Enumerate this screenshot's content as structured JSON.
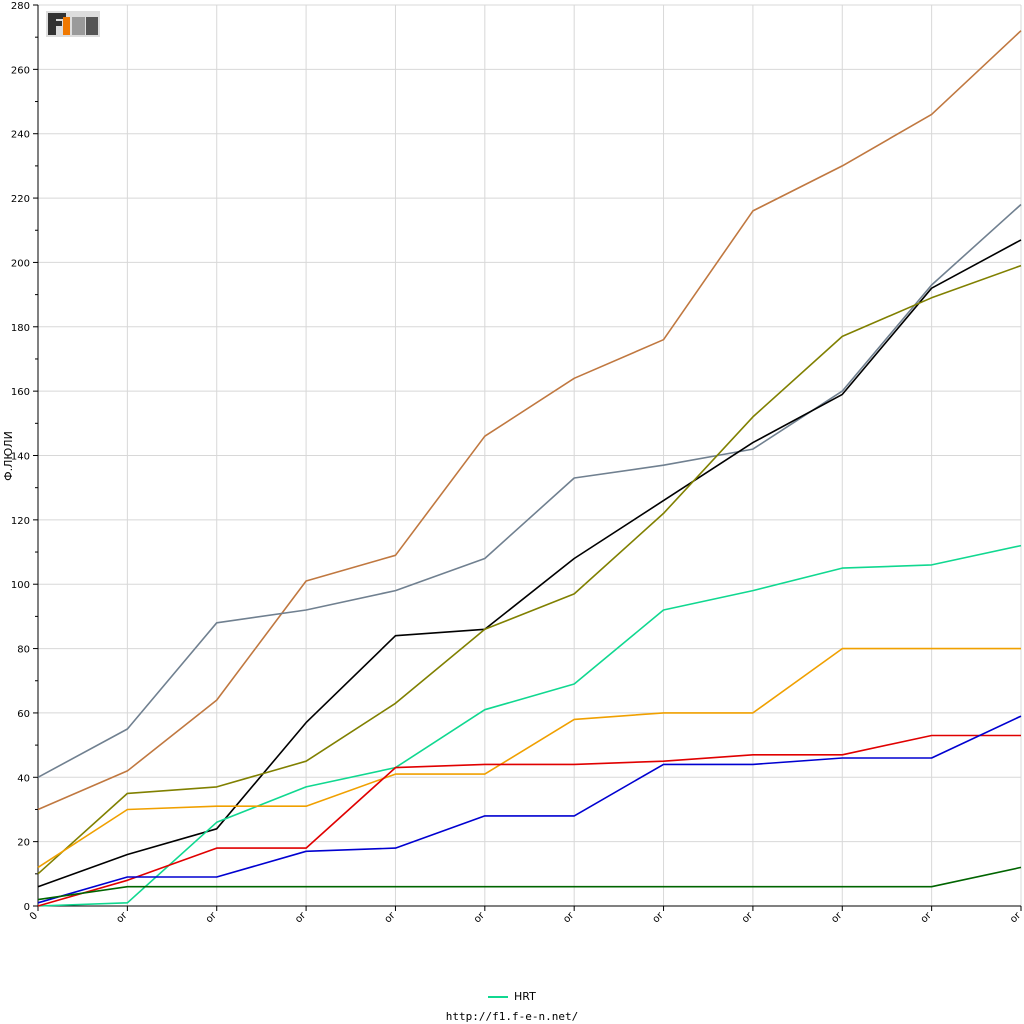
{
  "logo": {
    "text": "F1EN",
    "colors": {
      "dark": "#333333",
      "accent": "#f07800",
      "light": "#9a9a9a"
    }
  },
  "footer": {
    "url": "http://f1.f-e-n.net/"
  },
  "legend": {
    "label": "HRT",
    "color": "#10d890"
  },
  "chart_data": {
    "type": "line",
    "ylabel": "Ф.ЛЮЛИ",
    "ylim": [
      0,
      280
    ],
    "yticks": [
      0,
      20,
      40,
      60,
      80,
      100,
      120,
      140,
      160,
      180,
      200,
      220,
      240,
      260,
      280
    ],
    "x": [
      "0",
      "or",
      "or",
      "or",
      "or",
      "or",
      "or",
      "or",
      "or",
      "or",
      "or",
      "or"
    ],
    "grid": true,
    "legend_position": "bottom-center",
    "series": [
      {
        "color": "#c07840",
        "values": [
          30,
          42,
          64,
          101,
          109,
          146,
          164,
          176,
          216,
          230,
          246,
          272
        ]
      },
      {
        "color": "#708090",
        "values": [
          40,
          55,
          88,
          92,
          98,
          108,
          133,
          137,
          142,
          160,
          193,
          218
        ]
      },
      {
        "color": "#000000",
        "values": [
          6,
          16,
          24,
          57,
          84,
          86,
          108,
          126,
          144,
          159,
          192,
          207
        ]
      },
      {
        "color": "#808000",
        "values": [
          10,
          35,
          37,
          45,
          63,
          86,
          97,
          122,
          152,
          177,
          189,
          199
        ]
      },
      {
        "name": "HRT",
        "color": "#10d890",
        "values": [
          0,
          1,
          26,
          37,
          43,
          61,
          69,
          92,
          98,
          105,
          106,
          112
        ]
      },
      {
        "color": "#f0a000",
        "values": [
          12,
          30,
          31,
          31,
          41,
          41,
          58,
          60,
          60,
          80,
          80,
          80
        ]
      },
      {
        "color": "#e00000",
        "values": [
          0,
          8,
          18,
          18,
          43,
          44,
          44,
          45,
          47,
          47,
          53,
          53
        ]
      },
      {
        "color": "#0000d0",
        "values": [
          1,
          9,
          9,
          17,
          18,
          28,
          28,
          44,
          44,
          46,
          46,
          59
        ]
      },
      {
        "color": "#006400",
        "values": [
          2,
          6,
          6,
          6,
          6,
          6,
          6,
          6,
          6,
          6,
          6,
          12
        ]
      }
    ]
  }
}
